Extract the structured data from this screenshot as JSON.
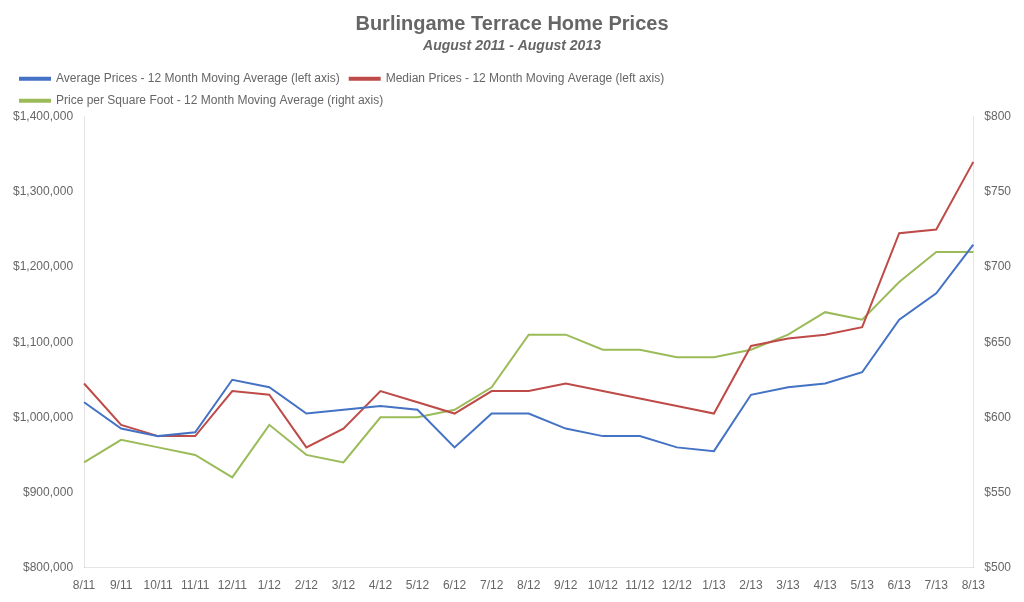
{
  "chart_data": {
    "type": "line",
    "title": "Burlingame Terrace Home Prices",
    "subtitle": "August 2011 - August 2013",
    "categories": [
      "8/11",
      "9/11",
      "10/11",
      "11/11",
      "12/11",
      "1/12",
      "2/12",
      "3/12",
      "4/12",
      "5/12",
      "6/12",
      "7/12",
      "8/12",
      "9/12",
      "10/12",
      "11/12",
      "12/12",
      "1/13",
      "2/13",
      "3/13",
      "4/13",
      "5/13",
      "6/13",
      "7/13",
      "8/13"
    ],
    "series": [
      {
        "name": "Average Prices - 12 Month Moving Average (left axis)",
        "color": "#4472C4",
        "values": [
          1020000,
          985000,
          975000,
          980000,
          1050000,
          1040000,
          1005000,
          1010000,
          1015000,
          1010000,
          960000,
          1005000,
          1005000,
          985000,
          975000,
          975000,
          960000,
          955000,
          1030000,
          1040000,
          1045000,
          1060000,
          1130000,
          1165000,
          1230000
        ]
      },
      {
        "name": "Median Prices - 12 Month Moving Average (left axis)",
        "color": "#BE4B48",
        "values": [
          1045000,
          990000,
          975000,
          975000,
          1035000,
          1030000,
          960000,
          985000,
          1035000,
          1020000,
          1005000,
          1035000,
          1035000,
          1045000,
          1035000,
          1025000,
          1015000,
          1005000,
          1095000,
          1105000,
          1110000,
          1120000,
          1245000,
          1250000,
          1340000
        ]
      },
      {
        "name": "Price per Square Foot - 12 Month Moving Average (right axis)",
        "color": "#9BBB59",
        "axis": "y2",
        "values": [
          570,
          585,
          580,
          575,
          560,
          595,
          575,
          570,
          600,
          600,
          605,
          620,
          655,
          655,
          645,
          645,
          640,
          640,
          645,
          655,
          670,
          665,
          690,
          710,
          710
        ]
      }
    ],
    "ylim": [
      800000,
      1400000
    ],
    "yticks": [
      {
        "value": 800000,
        "label": "$800,000"
      },
      {
        "value": 900000,
        "label": "$900,000"
      },
      {
        "value": 1000000,
        "label": "$1,000,000"
      },
      {
        "value": 1100000,
        "label": "$1,100,000"
      },
      {
        "value": 1200000,
        "label": "$1,200,000"
      },
      {
        "value": 1300000,
        "label": "$1,300,000"
      },
      {
        "value": 1400000,
        "label": "$1,400,000"
      }
    ],
    "y2lim": [
      500,
      800
    ],
    "y2ticks": [
      {
        "value": 500,
        "label": "$500"
      },
      {
        "value": 550,
        "label": "$550"
      },
      {
        "value": 600,
        "label": "$600"
      },
      {
        "value": 650,
        "label": "$650"
      },
      {
        "value": 700,
        "label": "$700"
      },
      {
        "value": 750,
        "label": "$750"
      },
      {
        "value": 800,
        "label": "$800"
      }
    ],
    "grid": false,
    "legend": "upper left"
  }
}
